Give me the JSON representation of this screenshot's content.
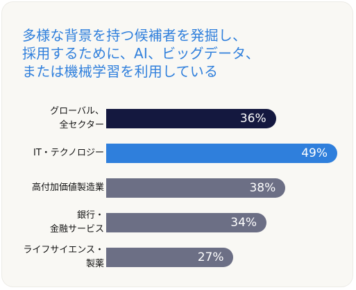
{
  "title_lines": [
    "多様な背景を持つ候補者を発掘し、",
    "採用するために、AI、ビッグデータ、",
    "または機械学習を利用している"
  ],
  "chart_data": {
    "type": "bar",
    "orientation": "horizontal",
    "title": "多様な背景を持つ候補者を発掘し、採用するために、AI、ビッグデータ、または機械学習を利用している",
    "categories": [
      [
        "グローバル、",
        "全セクター"
      ],
      [
        "IT・テクノロジー"
      ],
      [
        "高付加価値製造業"
      ],
      [
        "銀行・",
        "金融サービス"
      ],
      [
        "ライフサイエンス・",
        "製薬"
      ]
    ],
    "values": [
      36,
      49,
      38,
      34,
      27
    ],
    "value_labels": [
      "36%",
      "49%",
      "38%",
      "34%",
      "27%"
    ],
    "colors": [
      "#14183f",
      "#2f7fdc",
      "#6c6f85",
      "#6c6f85",
      "#6c6f85"
    ],
    "xlim": [
      0,
      49
    ],
    "grid": false,
    "legend": "none"
  }
}
